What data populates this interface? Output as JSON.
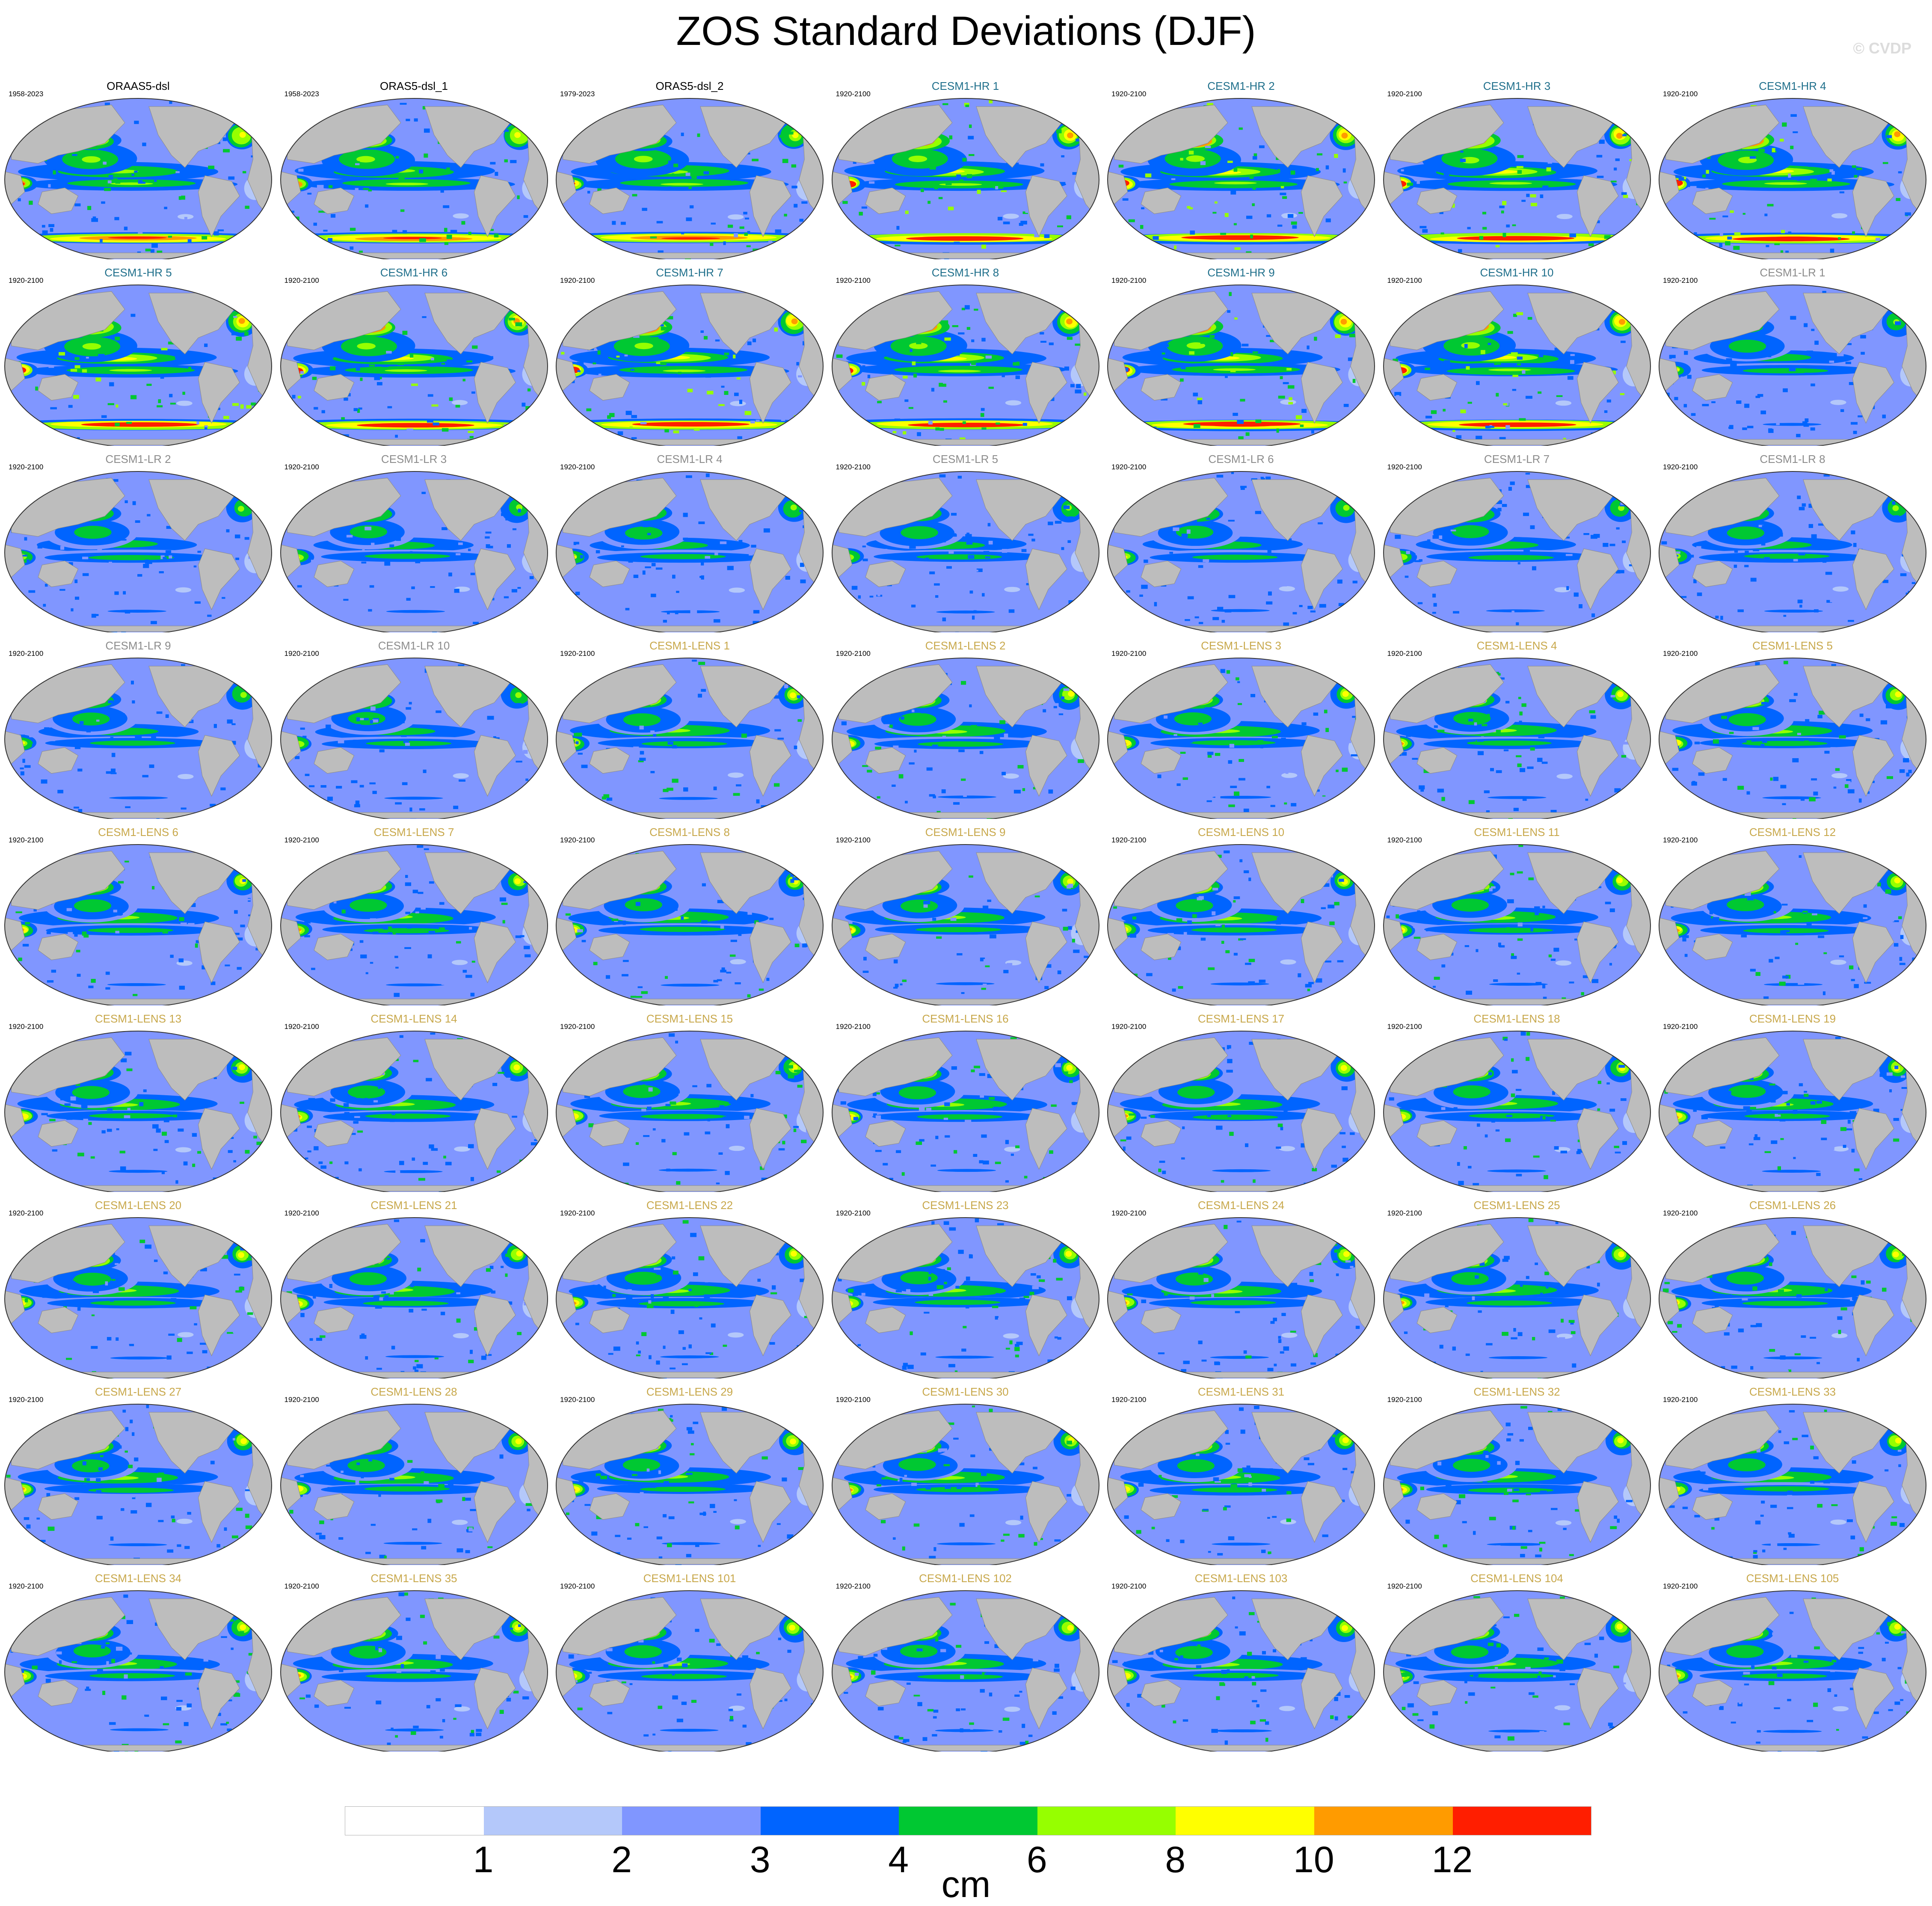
{
  "title": "ZOS Standard Deviations (DJF)",
  "watermark": "© CVDP",
  "colors": {
    "title_black": "#000000",
    "title_hr": "#1f6f8b",
    "title_lr": "#8c8c8c",
    "title_lens": "#c8a84b",
    "land": "#bdbdbd",
    "level_colors": [
      "#ffffff",
      "#b4c8fa",
      "#8096ff",
      "#0064ff",
      "#00c832",
      "#96ff00",
      "#ffff00",
      "#ff9b00",
      "#ff1e00"
    ]
  },
  "panels": [
    {
      "title": "ORAAS5-dsl",
      "years": "1958-2023",
      "group": "obs",
      "intensity": 0.8
    },
    {
      "title": "ORAS5-dsl_1",
      "years": "1958-2023",
      "group": "obs",
      "intensity": 0.8
    },
    {
      "title": "ORAS5-dsl_2",
      "years": "1979-2023",
      "group": "obs",
      "intensity": 0.75
    },
    {
      "title": "CESM1-HR 1",
      "years": "1920-2100",
      "group": "hr",
      "intensity": 1.0
    },
    {
      "title": "CESM1-HR 2",
      "years": "1920-2100",
      "group": "hr",
      "intensity": 1.0
    },
    {
      "title": "CESM1-HR 3",
      "years": "1920-2100",
      "group": "hr",
      "intensity": 1.0
    },
    {
      "title": "CESM1-HR 4",
      "years": "1920-2100",
      "group": "hr",
      "intensity": 1.0
    },
    {
      "title": "CESM1-HR 5",
      "years": "1920-2100",
      "group": "hr",
      "intensity": 1.0
    },
    {
      "title": "CESM1-HR 6",
      "years": "1920-2100",
      "group": "hr",
      "intensity": 1.0
    },
    {
      "title": "CESM1-HR 7",
      "years": "1920-2100",
      "group": "hr",
      "intensity": 1.0
    },
    {
      "title": "CESM1-HR 8",
      "years": "1920-2100",
      "group": "hr",
      "intensity": 1.0
    },
    {
      "title": "CESM1-HR 9",
      "years": "1920-2100",
      "group": "hr",
      "intensity": 1.0
    },
    {
      "title": "CESM1-HR 10",
      "years": "1920-2100",
      "group": "hr",
      "intensity": 1.0
    },
    {
      "title": "CESM1-LR 1",
      "years": "1920-2100",
      "group": "lr",
      "intensity": 0.45
    },
    {
      "title": "CESM1-LR 2",
      "years": "1920-2100",
      "group": "lr",
      "intensity": 0.5
    },
    {
      "title": "CESM1-LR 3",
      "years": "1920-2100",
      "group": "lr",
      "intensity": 0.5
    },
    {
      "title": "CESM1-LR 4",
      "years": "1920-2100",
      "group": "lr",
      "intensity": 0.5
    },
    {
      "title": "CESM1-LR 5",
      "years": "1920-2100",
      "group": "lr",
      "intensity": 0.5
    },
    {
      "title": "CESM1-LR 6",
      "years": "1920-2100",
      "group": "lr",
      "intensity": 0.5
    },
    {
      "title": "CESM1-LR 7",
      "years": "1920-2100",
      "group": "lr",
      "intensity": 0.5
    },
    {
      "title": "CESM1-LR 8",
      "years": "1920-2100",
      "group": "lr",
      "intensity": 0.5
    },
    {
      "title": "CESM1-LR 9",
      "years": "1920-2100",
      "group": "lr",
      "intensity": 0.5
    },
    {
      "title": "CESM1-LR 10",
      "years": "1920-2100",
      "group": "lr",
      "intensity": 0.5
    },
    {
      "title": "CESM1-LENS 1",
      "years": "1920-2100",
      "group": "lens",
      "intensity": 0.65
    },
    {
      "title": "CESM1-LENS 2",
      "years": "1920-2100",
      "group": "lens",
      "intensity": 0.65
    },
    {
      "title": "CESM1-LENS 3",
      "years": "1920-2100",
      "group": "lens",
      "intensity": 0.65
    },
    {
      "title": "CESM1-LENS 4",
      "years": "1920-2100",
      "group": "lens",
      "intensity": 0.65
    },
    {
      "title": "CESM1-LENS 5",
      "years": "1920-2100",
      "group": "lens",
      "intensity": 0.65
    },
    {
      "title": "CESM1-LENS 6",
      "years": "1920-2100",
      "group": "lens",
      "intensity": 0.65
    },
    {
      "title": "CESM1-LENS 7",
      "years": "1920-2100",
      "group": "lens",
      "intensity": 0.65
    },
    {
      "title": "CESM1-LENS 8",
      "years": "1920-2100",
      "group": "lens",
      "intensity": 0.65
    },
    {
      "title": "CESM1-LENS 9",
      "years": "1920-2100",
      "group": "lens",
      "intensity": 0.65
    },
    {
      "title": "CESM1-LENS 10",
      "years": "1920-2100",
      "group": "lens",
      "intensity": 0.65
    },
    {
      "title": "CESM1-LENS 11",
      "years": "1920-2100",
      "group": "lens",
      "intensity": 0.65
    },
    {
      "title": "CESM1-LENS 12",
      "years": "1920-2100",
      "group": "lens",
      "intensity": 0.65
    },
    {
      "title": "CESM1-LENS 13",
      "years": "1920-2100",
      "group": "lens",
      "intensity": 0.65
    },
    {
      "title": "CESM1-LENS 14",
      "years": "1920-2100",
      "group": "lens",
      "intensity": 0.65
    },
    {
      "title": "CESM1-LENS 15",
      "years": "1920-2100",
      "group": "lens",
      "intensity": 0.65
    },
    {
      "title": "CESM1-LENS 16",
      "years": "1920-2100",
      "group": "lens",
      "intensity": 0.65
    },
    {
      "title": "CESM1-LENS 17",
      "years": "1920-2100",
      "group": "lens",
      "intensity": 0.65
    },
    {
      "title": "CESM1-LENS 18",
      "years": "1920-2100",
      "group": "lens",
      "intensity": 0.65
    },
    {
      "title": "CESM1-LENS 19",
      "years": "1920-2100",
      "group": "lens",
      "intensity": 0.65
    },
    {
      "title": "CESM1-LENS 20",
      "years": "1920-2100",
      "group": "lens",
      "intensity": 0.65
    },
    {
      "title": "CESM1-LENS 21",
      "years": "1920-2100",
      "group": "lens",
      "intensity": 0.65
    },
    {
      "title": "CESM1-LENS 22",
      "years": "1920-2100",
      "group": "lens",
      "intensity": 0.65
    },
    {
      "title": "CESM1-LENS 23",
      "years": "1920-2100",
      "group": "lens",
      "intensity": 0.65
    },
    {
      "title": "CESM1-LENS 24",
      "years": "1920-2100",
      "group": "lens",
      "intensity": 0.65
    },
    {
      "title": "CESM1-LENS 25",
      "years": "1920-2100",
      "group": "lens",
      "intensity": 0.65
    },
    {
      "title": "CESM1-LENS 26",
      "years": "1920-2100",
      "group": "lens",
      "intensity": 0.65
    },
    {
      "title": "CESM1-LENS 27",
      "years": "1920-2100",
      "group": "lens",
      "intensity": 0.65
    },
    {
      "title": "CESM1-LENS 28",
      "years": "1920-2100",
      "group": "lens",
      "intensity": 0.65
    },
    {
      "title": "CESM1-LENS 29",
      "years": "1920-2100",
      "group": "lens",
      "intensity": 0.65
    },
    {
      "title": "CESM1-LENS 30",
      "years": "1920-2100",
      "group": "lens",
      "intensity": 0.65
    },
    {
      "title": "CESM1-LENS 31",
      "years": "1920-2100",
      "group": "lens",
      "intensity": 0.65
    },
    {
      "title": "CESM1-LENS 32",
      "years": "1920-2100",
      "group": "lens",
      "intensity": 0.65
    },
    {
      "title": "CESM1-LENS 33",
      "years": "1920-2100",
      "group": "lens",
      "intensity": 0.65
    },
    {
      "title": "CESM1-LENS 34",
      "years": "1920-2100",
      "group": "lens",
      "intensity": 0.65
    },
    {
      "title": "CESM1-LENS 35",
      "years": "1920-2100",
      "group": "lens",
      "intensity": 0.65
    },
    {
      "title": "CESM1-LENS 101",
      "years": "1920-2100",
      "group": "lens",
      "intensity": 0.65
    },
    {
      "title": "CESM1-LENS 102",
      "years": "1920-2100",
      "group": "lens",
      "intensity": 0.65
    },
    {
      "title": "CESM1-LENS 103",
      "years": "1920-2100",
      "group": "lens",
      "intensity": 0.65
    },
    {
      "title": "CESM1-LENS 104",
      "years": "1920-2100",
      "group": "lens",
      "intensity": 0.65
    },
    {
      "title": "CESM1-LENS 105",
      "years": "1920-2100",
      "group": "lens",
      "intensity": 0.65
    }
  ],
  "chart_data": {
    "type": "heatmap",
    "title": "ZOS Standard Deviations (DJF)",
    "colorbar": {
      "levels": [
        1,
        2,
        3,
        4,
        6,
        8,
        10,
        12
      ],
      "tick_labels": [
        "1",
        "2",
        "3",
        "4",
        "6",
        "8",
        "10",
        "12"
      ],
      "unit": "cm"
    }
  }
}
